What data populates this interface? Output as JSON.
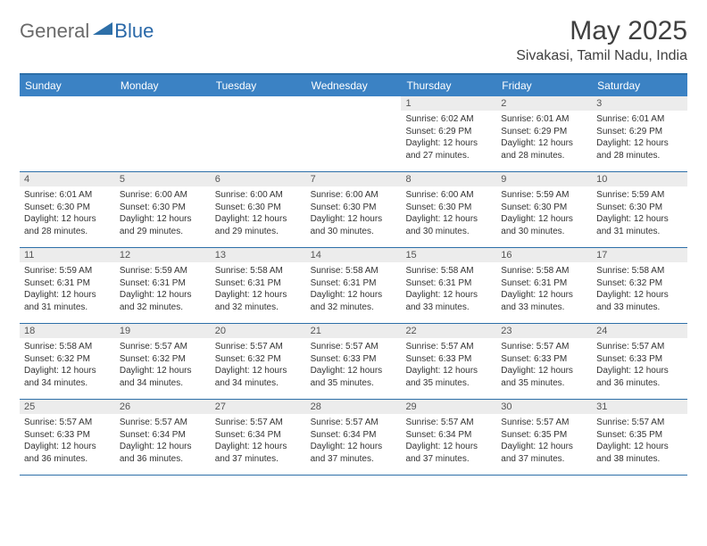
{
  "brand": {
    "part1": "General",
    "part2": "Blue"
  },
  "title": "May 2025",
  "location": "Sivakasi, Tamil Nadu, India",
  "styling": {
    "header_bar_color": "#3b82c4",
    "border_color": "#2d6fa8",
    "daynum_bg": "#ececec",
    "page_bg": "#ffffff",
    "weekday_text_color": "#ffffff",
    "body_text_color": "#333333",
    "title_color": "#404040",
    "logo_gray": "#6a6a6a",
    "logo_blue": "#2968a8",
    "font_family": "Arial",
    "month_title_fontsize": 30,
    "location_fontsize": 16,
    "weekday_fontsize": 12,
    "cell_fontsize": 10
  },
  "weekdays": [
    "Sunday",
    "Monday",
    "Tuesday",
    "Wednesday",
    "Thursday",
    "Friday",
    "Saturday"
  ],
  "weeks": [
    [
      {
        "n": "",
        "sr": "",
        "ss": "",
        "dl": ""
      },
      {
        "n": "",
        "sr": "",
        "ss": "",
        "dl": ""
      },
      {
        "n": "",
        "sr": "",
        "ss": "",
        "dl": ""
      },
      {
        "n": "",
        "sr": "",
        "ss": "",
        "dl": ""
      },
      {
        "n": "1",
        "sr": "Sunrise: 6:02 AM",
        "ss": "Sunset: 6:29 PM",
        "dl": "Daylight: 12 hours and 27 minutes."
      },
      {
        "n": "2",
        "sr": "Sunrise: 6:01 AM",
        "ss": "Sunset: 6:29 PM",
        "dl": "Daylight: 12 hours and 28 minutes."
      },
      {
        "n": "3",
        "sr": "Sunrise: 6:01 AM",
        "ss": "Sunset: 6:29 PM",
        "dl": "Daylight: 12 hours and 28 minutes."
      }
    ],
    [
      {
        "n": "4",
        "sr": "Sunrise: 6:01 AM",
        "ss": "Sunset: 6:30 PM",
        "dl": "Daylight: 12 hours and 28 minutes."
      },
      {
        "n": "5",
        "sr": "Sunrise: 6:00 AM",
        "ss": "Sunset: 6:30 PM",
        "dl": "Daylight: 12 hours and 29 minutes."
      },
      {
        "n": "6",
        "sr": "Sunrise: 6:00 AM",
        "ss": "Sunset: 6:30 PM",
        "dl": "Daylight: 12 hours and 29 minutes."
      },
      {
        "n": "7",
        "sr": "Sunrise: 6:00 AM",
        "ss": "Sunset: 6:30 PM",
        "dl": "Daylight: 12 hours and 30 minutes."
      },
      {
        "n": "8",
        "sr": "Sunrise: 6:00 AM",
        "ss": "Sunset: 6:30 PM",
        "dl": "Daylight: 12 hours and 30 minutes."
      },
      {
        "n": "9",
        "sr": "Sunrise: 5:59 AM",
        "ss": "Sunset: 6:30 PM",
        "dl": "Daylight: 12 hours and 30 minutes."
      },
      {
        "n": "10",
        "sr": "Sunrise: 5:59 AM",
        "ss": "Sunset: 6:30 PM",
        "dl": "Daylight: 12 hours and 31 minutes."
      }
    ],
    [
      {
        "n": "11",
        "sr": "Sunrise: 5:59 AM",
        "ss": "Sunset: 6:31 PM",
        "dl": "Daylight: 12 hours and 31 minutes."
      },
      {
        "n": "12",
        "sr": "Sunrise: 5:59 AM",
        "ss": "Sunset: 6:31 PM",
        "dl": "Daylight: 12 hours and 32 minutes."
      },
      {
        "n": "13",
        "sr": "Sunrise: 5:58 AM",
        "ss": "Sunset: 6:31 PM",
        "dl": "Daylight: 12 hours and 32 minutes."
      },
      {
        "n": "14",
        "sr": "Sunrise: 5:58 AM",
        "ss": "Sunset: 6:31 PM",
        "dl": "Daylight: 12 hours and 32 minutes."
      },
      {
        "n": "15",
        "sr": "Sunrise: 5:58 AM",
        "ss": "Sunset: 6:31 PM",
        "dl": "Daylight: 12 hours and 33 minutes."
      },
      {
        "n": "16",
        "sr": "Sunrise: 5:58 AM",
        "ss": "Sunset: 6:31 PM",
        "dl": "Daylight: 12 hours and 33 minutes."
      },
      {
        "n": "17",
        "sr": "Sunrise: 5:58 AM",
        "ss": "Sunset: 6:32 PM",
        "dl": "Daylight: 12 hours and 33 minutes."
      }
    ],
    [
      {
        "n": "18",
        "sr": "Sunrise: 5:58 AM",
        "ss": "Sunset: 6:32 PM",
        "dl": "Daylight: 12 hours and 34 minutes."
      },
      {
        "n": "19",
        "sr": "Sunrise: 5:57 AM",
        "ss": "Sunset: 6:32 PM",
        "dl": "Daylight: 12 hours and 34 minutes."
      },
      {
        "n": "20",
        "sr": "Sunrise: 5:57 AM",
        "ss": "Sunset: 6:32 PM",
        "dl": "Daylight: 12 hours and 34 minutes."
      },
      {
        "n": "21",
        "sr": "Sunrise: 5:57 AM",
        "ss": "Sunset: 6:33 PM",
        "dl": "Daylight: 12 hours and 35 minutes."
      },
      {
        "n": "22",
        "sr": "Sunrise: 5:57 AM",
        "ss": "Sunset: 6:33 PM",
        "dl": "Daylight: 12 hours and 35 minutes."
      },
      {
        "n": "23",
        "sr": "Sunrise: 5:57 AM",
        "ss": "Sunset: 6:33 PM",
        "dl": "Daylight: 12 hours and 35 minutes."
      },
      {
        "n": "24",
        "sr": "Sunrise: 5:57 AM",
        "ss": "Sunset: 6:33 PM",
        "dl": "Daylight: 12 hours and 36 minutes."
      }
    ],
    [
      {
        "n": "25",
        "sr": "Sunrise: 5:57 AM",
        "ss": "Sunset: 6:33 PM",
        "dl": "Daylight: 12 hours and 36 minutes."
      },
      {
        "n": "26",
        "sr": "Sunrise: 5:57 AM",
        "ss": "Sunset: 6:34 PM",
        "dl": "Daylight: 12 hours and 36 minutes."
      },
      {
        "n": "27",
        "sr": "Sunrise: 5:57 AM",
        "ss": "Sunset: 6:34 PM",
        "dl": "Daylight: 12 hours and 37 minutes."
      },
      {
        "n": "28",
        "sr": "Sunrise: 5:57 AM",
        "ss": "Sunset: 6:34 PM",
        "dl": "Daylight: 12 hours and 37 minutes."
      },
      {
        "n": "29",
        "sr": "Sunrise: 5:57 AM",
        "ss": "Sunset: 6:34 PM",
        "dl": "Daylight: 12 hours and 37 minutes."
      },
      {
        "n": "30",
        "sr": "Sunrise: 5:57 AM",
        "ss": "Sunset: 6:35 PM",
        "dl": "Daylight: 12 hours and 37 minutes."
      },
      {
        "n": "31",
        "sr": "Sunrise: 5:57 AM",
        "ss": "Sunset: 6:35 PM",
        "dl": "Daylight: 12 hours and 38 minutes."
      }
    ]
  ]
}
